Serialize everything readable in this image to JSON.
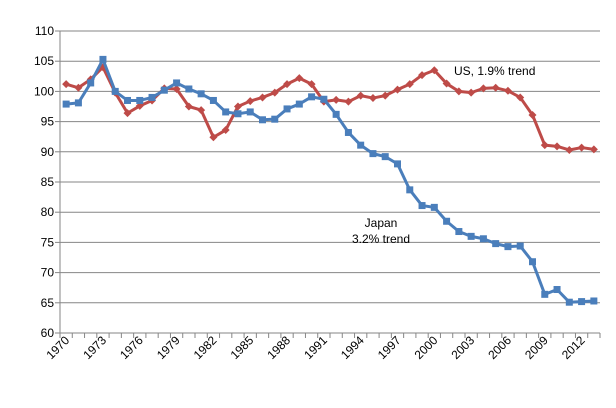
{
  "chart_data": {
    "type": "line",
    "title": "",
    "xlabel": "",
    "ylabel": "",
    "ylim": [
      60,
      110
    ],
    "yticks": [
      60,
      65,
      70,
      75,
      80,
      85,
      90,
      95,
      100,
      105,
      110
    ],
    "xticks": [
      1970,
      1973,
      1976,
      1979,
      1982,
      1985,
      1988,
      1991,
      1994,
      1997,
      2000,
      2003,
      2006,
      2009,
      2012
    ],
    "x": [
      1970,
      1971,
      1972,
      1973,
      1974,
      1975,
      1976,
      1977,
      1978,
      1979,
      1980,
      1981,
      1982,
      1983,
      1984,
      1985,
      1986,
      1987,
      1988,
      1989,
      1990,
      1991,
      1992,
      1993,
      1994,
      1995,
      1996,
      1997,
      1998,
      1999,
      2000,
      2001,
      2002,
      2003,
      2004,
      2005,
      2006,
      2007,
      2008,
      2009,
      2010,
      2011,
      2012,
      2013
    ],
    "series": [
      {
        "name": "US",
        "color": "#be4b48",
        "marker": "diamond",
        "values": [
          101.2,
          100.6,
          102.0,
          104.0,
          99.8,
          96.4,
          97.6,
          98.5,
          100.5,
          100.4,
          97.5,
          96.9,
          92.4,
          93.6,
          97.5,
          98.4,
          99.0,
          99.8,
          101.2,
          102.2,
          101.2,
          98.3,
          98.6,
          98.3,
          99.3,
          98.9,
          99.3,
          100.3,
          101.2,
          102.7,
          103.5,
          101.3,
          100.0,
          99.8,
          100.5,
          100.6,
          100.1,
          99.0,
          96.1,
          91.1,
          90.9,
          90.3,
          90.7,
          90.4
        ]
      },
      {
        "name": "Japan",
        "color": "#4a7ebb",
        "marker": "square",
        "values": [
          97.9,
          98.1,
          101.4,
          105.3,
          100.0,
          98.5,
          98.5,
          99.0,
          100.2,
          101.4,
          100.4,
          99.6,
          98.5,
          96.6,
          96.3,
          96.6,
          95.3,
          95.4,
          97.1,
          97.9,
          99.1,
          98.7,
          96.2,
          93.2,
          91.1,
          89.7,
          89.2,
          88.0,
          83.7,
          81.1,
          80.8,
          78.5,
          76.8,
          76.0,
          75.6,
          74.8,
          74.3,
          74.4,
          71.8,
          66.4,
          67.2,
          65.1,
          65.2,
          65.3
        ]
      }
    ],
    "annotations": [
      {
        "series": "US",
        "text": "US, 1.9% trend"
      },
      {
        "series": "Japan",
        "text": "Japan"
      },
      {
        "series": "Japan",
        "text": "3.2% trend"
      }
    ]
  }
}
